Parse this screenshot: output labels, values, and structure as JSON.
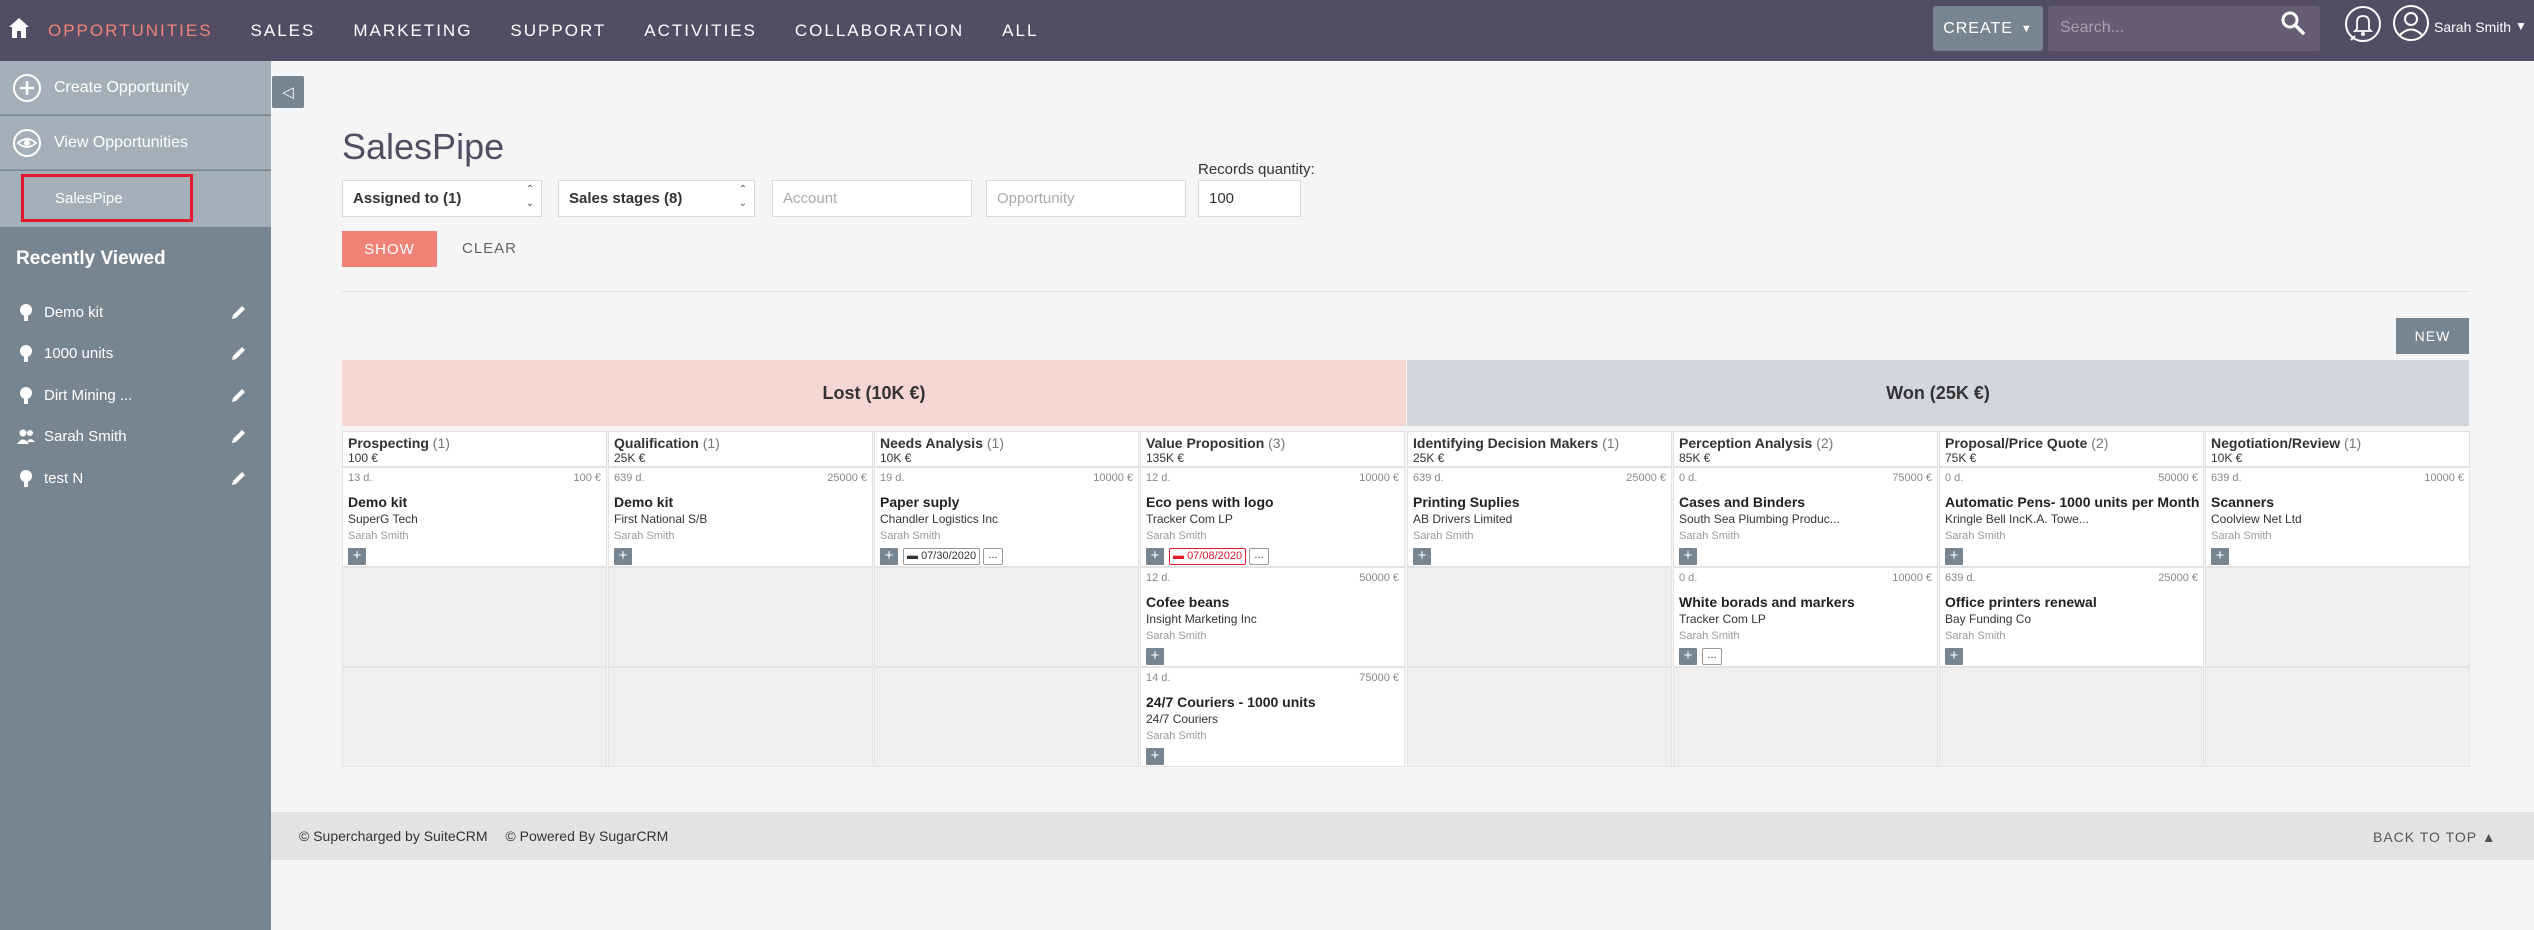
{
  "nav": {
    "items": [
      "OPPORTUNITIES",
      "SALES",
      "MARKETING",
      "SUPPORT",
      "ACTIVITIES",
      "COLLABORATION",
      "ALL"
    ],
    "create_label": "CREATE",
    "search_placeholder": "Search...",
    "user_name": "Sarah Smith",
    "active_color": "#f08377"
  },
  "sidebar": {
    "actions": [
      "Create Opportunity",
      "View Opportunities"
    ],
    "current": "SalesPipe",
    "recently_viewed_title": "Recently Viewed",
    "recent": [
      {
        "label": "Demo kit",
        "icon": "bulb-icon"
      },
      {
        "label": "1000 units",
        "icon": "bulb-icon"
      },
      {
        "label": "Dirt Mining ...",
        "icon": "bulb-icon"
      },
      {
        "label": "Sarah Smith",
        "icon": "users-icon"
      },
      {
        "label": "test N",
        "icon": "bulb-icon"
      }
    ]
  },
  "main": {
    "title": "SalesPipe",
    "filters": {
      "assigned": "Assigned to (1)",
      "stages": "Sales stages (8)",
      "account_placeholder": "Account",
      "opportunity_placeholder": "Opportunity",
      "records_label": "Records quantity:",
      "records_value": "100"
    },
    "show_label": "SHOW",
    "clear_label": "CLEAR",
    "new_label": "NEW",
    "lost_header": "Lost (10K €)",
    "won_header": "Won (25K €)"
  },
  "stages": [
    {
      "name": "Prospecting",
      "count": "(1)",
      "amount": "100 €"
    },
    {
      "name": "Qualification",
      "count": "(1)",
      "amount": "25K €"
    },
    {
      "name": "Needs Analysis",
      "count": "(1)",
      "amount": "10K €"
    },
    {
      "name": "Value Proposition",
      "count": "(3)",
      "amount": "135K €"
    },
    {
      "name": "Identifying Decision Makers",
      "count": "(1)",
      "amount": "25K €"
    },
    {
      "name": "Perception Analysis",
      "count": "(2)",
      "amount": "85K €"
    },
    {
      "name": "Proposal/Price Quote",
      "count": "(2)",
      "amount": "75K €"
    },
    {
      "name": "Negotiation/Review",
      "count": "(1)",
      "amount": "10K €"
    }
  ],
  "cards": [
    {
      "col": 0,
      "row": 0,
      "days": "13 d.",
      "amount": "100 €",
      "name": "Demo kit",
      "account": "SuperG Tech",
      "user": "Sarah Smith"
    },
    {
      "col": 1,
      "row": 0,
      "days": "639 d.",
      "amount": "25000 €",
      "name": "Demo kit",
      "account": "First National S/B",
      "user": "Sarah Smith"
    },
    {
      "col": 2,
      "row": 0,
      "days": "19 d.",
      "amount": "10000 €",
      "name": "Paper suply",
      "account": "Chandler Logistics Inc",
      "user": "Sarah Smith",
      "date": "07/30/2020",
      "overdue": false,
      "more": true
    },
    {
      "col": 3,
      "row": 0,
      "days": "12 d.",
      "amount": "10000 €",
      "name": "Eco pens with logo",
      "account": "Tracker Com LP",
      "user": "Sarah Smith",
      "date": "07/08/2020",
      "overdue": true,
      "more": true
    },
    {
      "col": 4,
      "row": 0,
      "days": "639 d.",
      "amount": "25000 €",
      "name": "Printing Suplies",
      "account": "AB Drivers Limited",
      "user": "Sarah Smith"
    },
    {
      "col": 5,
      "row": 0,
      "days": "0 d.",
      "amount": "75000 €",
      "name": "Cases and Binders",
      "account": "South Sea Plumbing Produc...",
      "user": "Sarah Smith"
    },
    {
      "col": 6,
      "row": 0,
      "days": "0 d.",
      "amount": "50000 €",
      "name": "Automatic Pens- 1000 units per Month",
      "account": "Kringle Bell IncK.A. Towe...",
      "user": "Sarah Smith"
    },
    {
      "col": 7,
      "row": 0,
      "days": "639 d.",
      "amount": "10000 €",
      "name": "Scanners",
      "account": "Coolview Net Ltd",
      "user": "Sarah Smith"
    },
    {
      "col": 3,
      "row": 1,
      "days": "12 d.",
      "amount": "50000 €",
      "name": "Cofee beans",
      "account": "Insight Marketing Inc",
      "user": "Sarah Smith"
    },
    {
      "col": 5,
      "row": 1,
      "days": "0 d.",
      "amount": "10000 €",
      "name": "White borads and markers",
      "account": "Tracker Com LP",
      "user": "Sarah Smith",
      "more": true
    },
    {
      "col": 6,
      "row": 1,
      "days": "639 d.",
      "amount": "25000 €",
      "name": "Office printers renewal",
      "account": "Bay Funding Co",
      "user": "Sarah Smith"
    },
    {
      "col": 3,
      "row": 2,
      "days": "14 d.",
      "amount": "75000 €",
      "name": "24/7 Couriers - 1000 units",
      "account": "24/7 Couriers",
      "user": "Sarah Smith"
    }
  ],
  "footer": {
    "left": [
      "© Supercharged by SuiteCRM",
      "© Powered By SugarCRM"
    ],
    "back_to_top": "BACK TO TOP"
  }
}
